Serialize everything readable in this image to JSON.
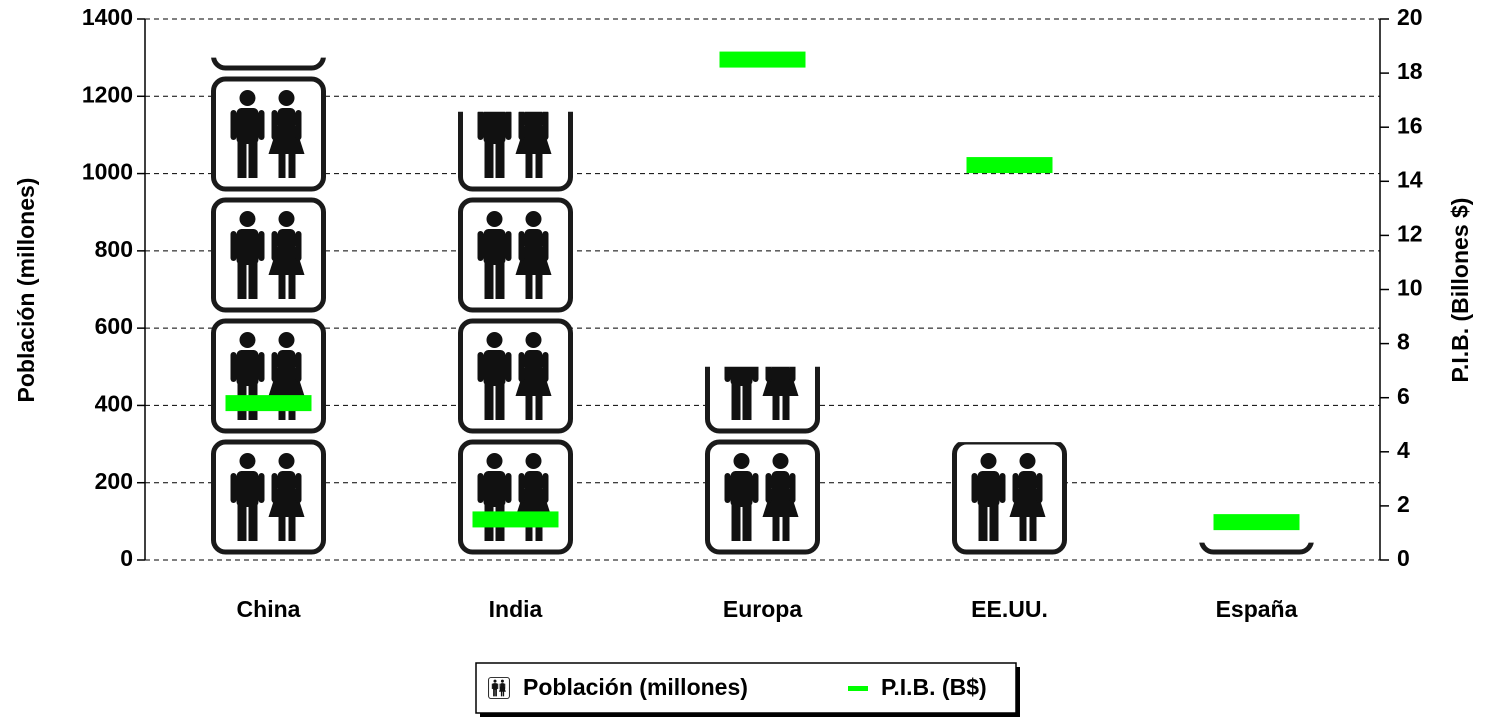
{
  "chart_data": {
    "type": "bar",
    "categories": [
      "China",
      "India",
      "Europa",
      "EE.UU.",
      "España"
    ],
    "series": [
      {
        "name": "Población (millones)",
        "type": "pictograph",
        "color": "#000000",
        "values": [
          1300,
          1160,
          500,
          305,
          45
        ]
      },
      {
        "name": "P.I.B. (B$)",
        "type": "dash",
        "color": "#00ff00",
        "axis": "y2",
        "values": [
          5.8,
          1.5,
          18.5,
          14.6,
          1.4
        ]
      }
    ],
    "ylabel": "Población (millones)",
    "y2label": "P.I.B. (Billones $)",
    "ylim": [
      0,
      1400
    ],
    "yticks": [
      0,
      200,
      400,
      600,
      800,
      1000,
      1200,
      1400
    ],
    "y2lim": [
      0,
      20
    ],
    "y2ticks": [
      0,
      2,
      4,
      6,
      8,
      10,
      12,
      14,
      16,
      18,
      20
    ],
    "grid": true,
    "legend": "bottom"
  }
}
